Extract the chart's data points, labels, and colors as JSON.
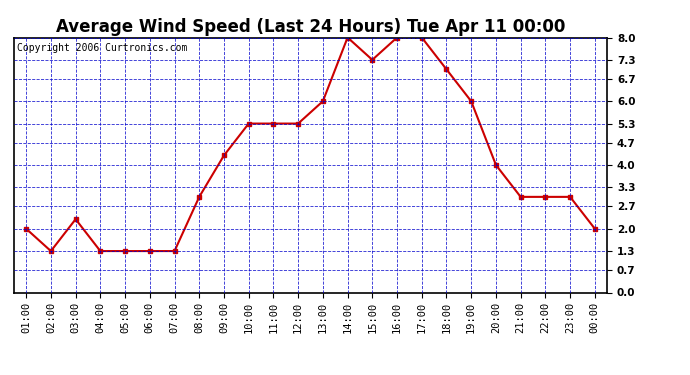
{
  "title": "Average Wind Speed (Last 24 Hours) Tue Apr 11 00:00",
  "copyright": "Copyright 2006 Curtronics.com",
  "x_labels": [
    "01:00",
    "02:00",
    "03:00",
    "04:00",
    "05:00",
    "06:00",
    "07:00",
    "08:00",
    "09:00",
    "10:00",
    "11:00",
    "12:00",
    "13:00",
    "14:00",
    "15:00",
    "16:00",
    "17:00",
    "18:00",
    "19:00",
    "20:00",
    "21:00",
    "22:00",
    "23:00",
    "00:00"
  ],
  "y_values": [
    2.0,
    1.3,
    2.3,
    1.3,
    1.3,
    1.3,
    1.3,
    3.0,
    4.3,
    5.3,
    5.3,
    5.3,
    6.0,
    8.0,
    7.3,
    8.0,
    8.0,
    7.0,
    6.0,
    4.0,
    3.0,
    3.0,
    3.0,
    2.0
  ],
  "line_color": "#cc0000",
  "marker": "s",
  "marker_size": 3,
  "bg_color": "#ffffff",
  "plot_bg_color": "#ffffff",
  "grid_color": "#0000cc",
  "border_color": "#000000",
  "title_color": "#000000",
  "copyright_color": "#000000",
  "ylim": [
    0.0,
    8.0
  ],
  "yticks": [
    0.0,
    0.7,
    1.3,
    2.0,
    2.7,
    3.3,
    4.0,
    4.7,
    5.3,
    6.0,
    6.7,
    7.3,
    8.0
  ],
  "title_fontsize": 12,
  "copyright_fontsize": 7,
  "tick_fontsize": 7.5
}
